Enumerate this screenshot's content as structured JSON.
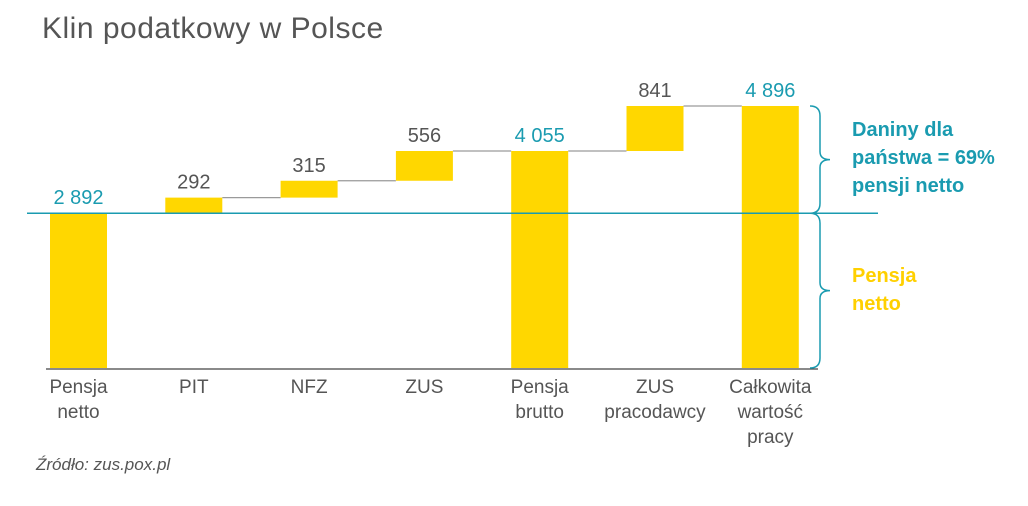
{
  "title": "Klin podatkowy w Polsce",
  "source": "Źródło: zus.pox.pl",
  "side_labels": {
    "fiscal": [
      "Daniny dla",
      "państwa = 69%",
      "pensji netto"
    ],
    "net": [
      "Pensja",
      "netto"
    ]
  },
  "colors": {
    "bar": "#FFD700",
    "teal": "#1A9BB0",
    "gray": "#555555",
    "connector": "#9a9a9a"
  },
  "chart_data": {
    "type": "waterfall",
    "categories": [
      [
        "Pensja",
        "netto"
      ],
      [
        "PIT"
      ],
      [
        "NFZ"
      ],
      [
        "ZUS"
      ],
      [
        "Pensja",
        "brutto"
      ],
      [
        "ZUS",
        "pracodawcy"
      ],
      [
        "Całkowita",
        "wartość",
        "pracy"
      ]
    ],
    "values": [
      2892,
      292,
      315,
      556,
      4055,
      841,
      4896
    ],
    "bar_kind": [
      "total",
      "delta",
      "delta",
      "delta",
      "total",
      "delta",
      "total"
    ],
    "value_labels": [
      "2 892",
      "292",
      "315",
      "556",
      "4 055",
      "841",
      "4 896"
    ],
    "label_colors": [
      "teal",
      "gray",
      "gray",
      "gray",
      "teal",
      "gray",
      "teal"
    ],
    "ylim": [
      0,
      5000
    ],
    "reference_line": 2892,
    "xlabel": "",
    "ylabel": "",
    "grid": false
  }
}
